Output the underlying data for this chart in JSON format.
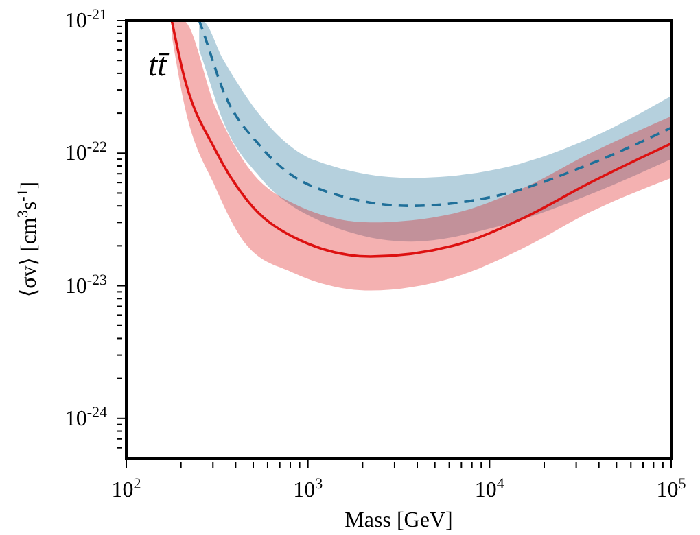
{
  "chart_data": {
    "type": "line",
    "xlabel": "Mass [GeV]",
    "ylabel": "⟨σv⟩ [cm$^{3}$s$^{-1}$]",
    "annotations": [
      "tt̄"
    ],
    "log": "xy",
    "xlim": [
      100,
      100000
    ],
    "ylim": [
      5e-25,
      1e-21
    ],
    "xticks": [
      {
        "value": 100,
        "label": "10$^{2}$"
      },
      {
        "value": 200,
        "label": null
      },
      {
        "value": 300,
        "label": null
      },
      {
        "value": 400,
        "label": null
      },
      {
        "value": 500,
        "label": null
      },
      {
        "value": 600,
        "label": null
      },
      {
        "value": 700,
        "label": null
      },
      {
        "value": 800,
        "label": null
      },
      {
        "value": 900,
        "label": null
      },
      {
        "value": 1000,
        "label": "10$^{3}$"
      },
      {
        "value": 2000,
        "label": null
      },
      {
        "value": 3000,
        "label": null
      },
      {
        "value": 4000,
        "label": null
      },
      {
        "value": 5000,
        "label": null
      },
      {
        "value": 6000,
        "label": null
      },
      {
        "value": 7000,
        "label": null
      },
      {
        "value": 8000,
        "label": null
      },
      {
        "value": 9000,
        "label": null
      },
      {
        "value": 10000,
        "label": "10$^{4}$"
      },
      {
        "value": 20000,
        "label": null
      },
      {
        "value": 30000,
        "label": null
      },
      {
        "value": 40000,
        "label": null
      },
      {
        "value": 50000,
        "label": null
      },
      {
        "value": 60000,
        "label": null
      },
      {
        "value": 70000,
        "label": null
      },
      {
        "value": 80000,
        "label": null
      },
      {
        "value": 90000,
        "label": null
      },
      {
        "value": 100000,
        "label": "10$^{5}$"
      }
    ],
    "yticks": [
      {
        "value": 6e-25,
        "label": null
      },
      {
        "value": 7e-25,
        "label": null
      },
      {
        "value": 8e-25,
        "label": null
      },
      {
        "value": 9e-25,
        "label": null
      },
      {
        "value": 1e-24,
        "label": "10$^{-24}$"
      },
      {
        "value": 2e-24,
        "label": null
      },
      {
        "value": 3e-24,
        "label": null
      },
      {
        "value": 4e-24,
        "label": null
      },
      {
        "value": 5e-24,
        "label": null
      },
      {
        "value": 6e-24,
        "label": null
      },
      {
        "value": 7e-24,
        "label": null
      },
      {
        "value": 8e-24,
        "label": null
      },
      {
        "value": 9e-24,
        "label": null
      },
      {
        "value": 1e-23,
        "label": "10$^{-23}$"
      },
      {
        "value": 2e-23,
        "label": null
      },
      {
        "value": 3e-23,
        "label": null
      },
      {
        "value": 4e-23,
        "label": null
      },
      {
        "value": 5e-23,
        "label": null
      },
      {
        "value": 6e-23,
        "label": null
      },
      {
        "value": 7e-23,
        "label": null
      },
      {
        "value": 8e-23,
        "label": null
      },
      {
        "value": 9e-23,
        "label": null
      },
      {
        "value": 1e-22,
        "label": "10$^{-22}$"
      },
      {
        "value": 2e-22,
        "label": null
      },
      {
        "value": 3e-22,
        "label": null
      },
      {
        "value": 4e-22,
        "label": null
      },
      {
        "value": 5e-22,
        "label": null
      },
      {
        "value": 6e-22,
        "label": null
      },
      {
        "value": 7e-22,
        "label": null
      },
      {
        "value": 8e-22,
        "label": null
      },
      {
        "value": 9e-22,
        "label": null
      },
      {
        "value": 1e-21,
        "label": "10$^{-21}$"
      }
    ],
    "series": [
      {
        "color": "#1f6f99",
        "line_style": "dashed",
        "x": [
          252,
          260,
          344,
          550,
          1100,
          3700,
          11200,
          35900,
          100000
        ],
        "values": [
          1e-21,
          8.9e-22,
          2.9e-22,
          1.12e-22,
          5.5e-23,
          4e-23,
          4.8e-23,
          8.3e-23,
          1.55e-22
        ],
        "lower": [
          6e-22,
          5.3e-22,
          1.7e-22,
          6.5e-23,
          3.2e-23,
          2.15e-23,
          2.8e-23,
          4.9e-23,
          9e-23
        ],
        "upper": [
          1e-21,
          1e-21,
          5e-22,
          1.9e-22,
          8.8e-23,
          6.5e-23,
          7.6e-23,
          1.3e-22,
          2.7e-22
        ]
      },
      {
        "color": "#dd1111",
        "line_style": "solid",
        "x": [
          178,
          205,
          310,
          463,
          822,
          2210,
          6300,
          15100,
          35900,
          100000
        ],
        "values": [
          1e-21,
          4.1e-22,
          1.05e-22,
          4.4e-23,
          2.35e-23,
          1.66e-23,
          2e-23,
          3.2e-23,
          6e-23,
          1.18e-22
        ],
        "lower": [
          7.7e-22,
          2.6e-22,
          5.5e-23,
          2e-23,
          1.26e-23,
          9.2e-24,
          1.15e-23,
          1.9e-23,
          3.6e-23,
          6.5e-23
        ],
        "upper": [
          1e-21,
          1e-21,
          2.2e-22,
          8e-23,
          4.2e-23,
          3e-23,
          3.5e-23,
          5.4e-23,
          1e-22,
          1.9e-22
        ]
      }
    ]
  }
}
